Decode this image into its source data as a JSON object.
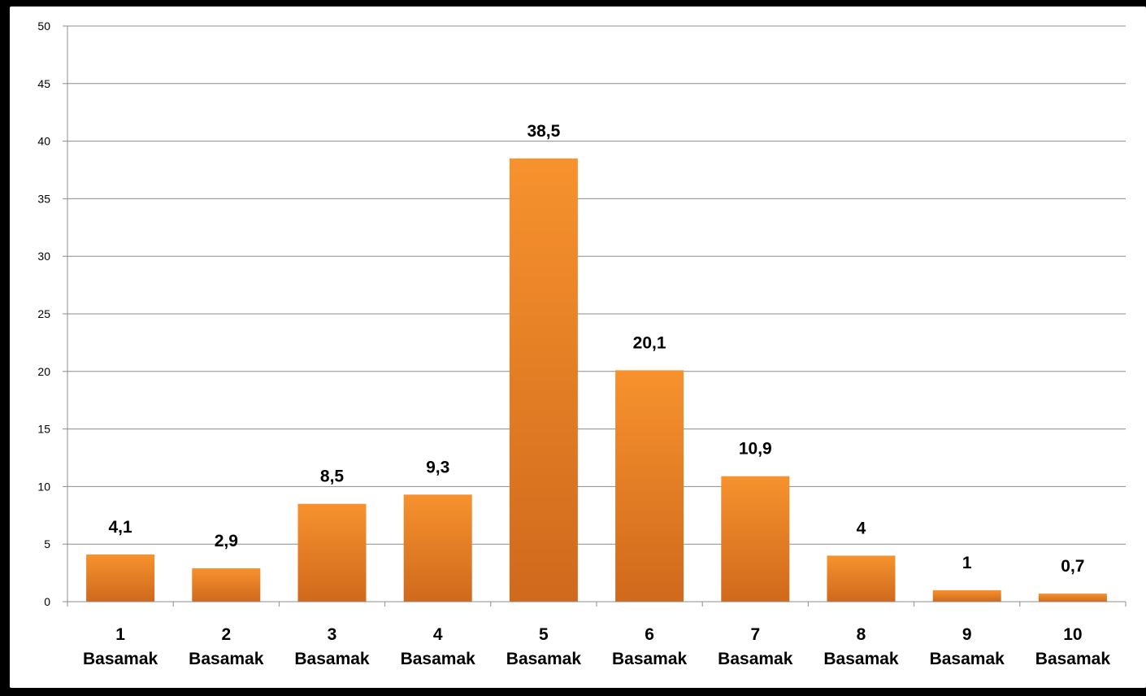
{
  "chart_data": {
    "type": "bar",
    "categories": [
      [
        "1",
        "Basamak"
      ],
      [
        "2",
        "Basamak"
      ],
      [
        "3",
        "Basamak"
      ],
      [
        "4",
        "Basamak"
      ],
      [
        "5",
        "Basamak"
      ],
      [
        "6",
        "Basamak"
      ],
      [
        "7",
        "Basamak"
      ],
      [
        "8",
        "Basamak"
      ],
      [
        "9",
        "Basamak"
      ],
      [
        "10",
        "Basamak"
      ]
    ],
    "values": [
      4.1,
      2.9,
      8.5,
      9.3,
      38.5,
      20.1,
      10.9,
      4,
      1,
      0.7
    ],
    "data_labels": [
      "4,1",
      "2,9",
      "8,5",
      "9,3",
      "38,5",
      "20,1",
      "10,9",
      "4",
      "1",
      "0,7"
    ],
    "yticks": [
      "0",
      "5",
      "10",
      "15",
      "20",
      "25",
      "30",
      "35",
      "40",
      "45",
      "50"
    ],
    "ylim": [
      0,
      50
    ],
    "grid": true,
    "legend": "none",
    "bar_color_top": "#f7922e",
    "bar_color_bottom": "#d0691c"
  }
}
